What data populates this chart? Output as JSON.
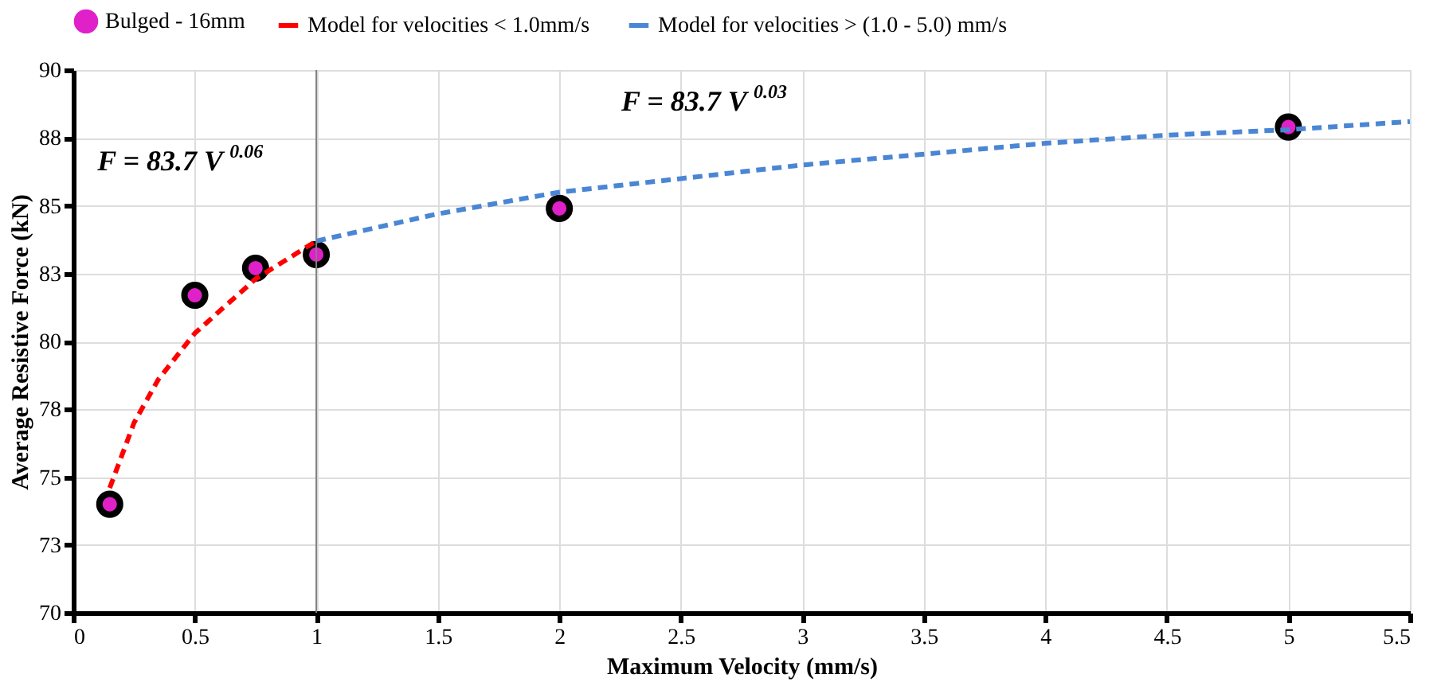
{
  "chart_data": {
    "type": "scatter",
    "xlabel": "Maximum Velocity (mm/s)",
    "ylabel": "Average Resistive Force  (kN)",
    "xlim": [
      0,
      5.5
    ],
    "xticks": [
      0,
      0.5,
      1,
      1.5,
      2,
      2.5,
      3,
      3.5,
      4,
      4.5,
      5,
      5.5
    ],
    "ylim": [
      70,
      90
    ],
    "yticks": [
      70,
      {
        "value": 72.5,
        "label": "73"
      },
      75,
      {
        "value": 77.5,
        "label": "78"
      },
      80,
      {
        "value": 82.5,
        "label": "83"
      },
      85,
      {
        "value": 87.5,
        "label": "88"
      },
      90
    ],
    "grid": true,
    "legend": "top",
    "series": [
      {
        "name": "Bulged - 16mm",
        "marker": "circle",
        "color": "#e020c8",
        "x": [
          0.15,
          0.5,
          0.75,
          1,
          2,
          5
        ],
        "values": [
          74.0,
          81.7,
          82.7,
          83.2,
          84.9,
          87.9
        ]
      },
      {
        "name": "Model for velocities  < 1.0mm/s",
        "type": "line",
        "marker": "none",
        "line_style": "dashed",
        "color": "#ff0000",
        "x": [
          0.15,
          0.25,
          0.35,
          0.5,
          0.75,
          1
        ],
        "values": [
          74.6,
          77.0,
          78.6,
          80.3,
          82.3,
          83.7
        ]
      },
      {
        "name": "Model for velocities  > (1.0 - 5.0) mm/s",
        "type": "line",
        "marker": "none",
        "line_style": "dashed",
        "color": "#4a86d4",
        "x": [
          1,
          1.5,
          2,
          2.5,
          3,
          3.5,
          4,
          4.5,
          5,
          5.5
        ],
        "values": [
          83.7,
          84.7,
          85.5,
          86.0,
          86.5,
          86.9,
          87.3,
          87.6,
          87.8,
          88.1
        ]
      }
    ],
    "ref_lines": [
      {
        "axis": "x",
        "value": 1,
        "color": "#808080",
        "line_style": "solid"
      }
    ],
    "annotations": [
      "F = 83.7 V$^{0.06}$",
      "F = 83.7 V$^{0.03}$"
    ]
  }
}
